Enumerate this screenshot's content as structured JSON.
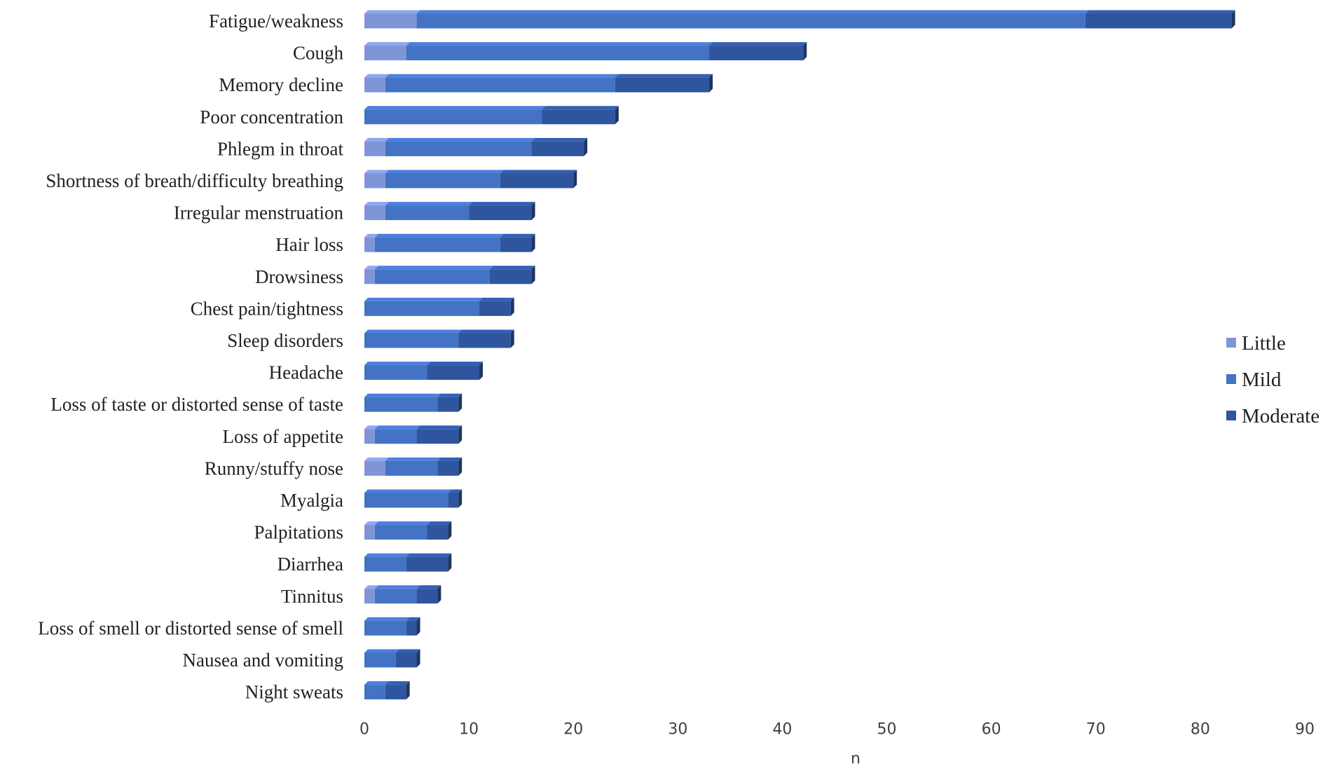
{
  "chart_data": {
    "type": "bar",
    "orientation": "horizontal",
    "stacked": true,
    "style": "3d",
    "xlabel": "n",
    "ylabel": "",
    "xlim": [
      0,
      90
    ],
    "xticks": [
      0,
      10,
      20,
      30,
      40,
      50,
      60,
      70,
      80,
      90
    ],
    "grid": false,
    "legend_position": "right",
    "categories": [
      "Fatigue/weakness",
      "Cough",
      "Memory decline",
      "Poor concentration",
      "Phlegm in throat",
      "Shortness of breath/difficulty breathing",
      "Irregular menstruation",
      "Hair loss",
      "Drowsiness",
      "Chest pain/tightness",
      "Sleep disorders",
      "Headache",
      "Loss of taste or distorted sense of taste",
      "Loss of appetite",
      "Runny/stuffy nose",
      "Myalgia",
      "Palpitations",
      "Diarrhea",
      "Tinnitus",
      "Loss of smell or distorted sense of smell",
      "Nausea and vomiting",
      "Night sweats"
    ],
    "series": [
      {
        "name": "Little",
        "color": "#7F95D6",
        "values": [
          5,
          4,
          2,
          0,
          2,
          2,
          2,
          1,
          1,
          0,
          0,
          0,
          0,
          1,
          2,
          0,
          1,
          0,
          1,
          0,
          0,
          0
        ]
      },
      {
        "name": "Mild",
        "color": "#4472C4",
        "values": [
          64,
          29,
          22,
          17,
          14,
          11,
          8,
          12,
          11,
          11,
          9,
          6,
          7,
          4,
          5,
          8,
          5,
          4,
          4,
          4,
          3,
          2
        ]
      },
      {
        "name": "Moderate",
        "color": "#2F559E",
        "values": [
          14,
          9,
          9,
          7,
          5,
          7,
          6,
          3,
          4,
          3,
          5,
          5,
          2,
          4,
          2,
          1,
          2,
          4,
          2,
          1,
          2,
          2
        ]
      }
    ]
  }
}
